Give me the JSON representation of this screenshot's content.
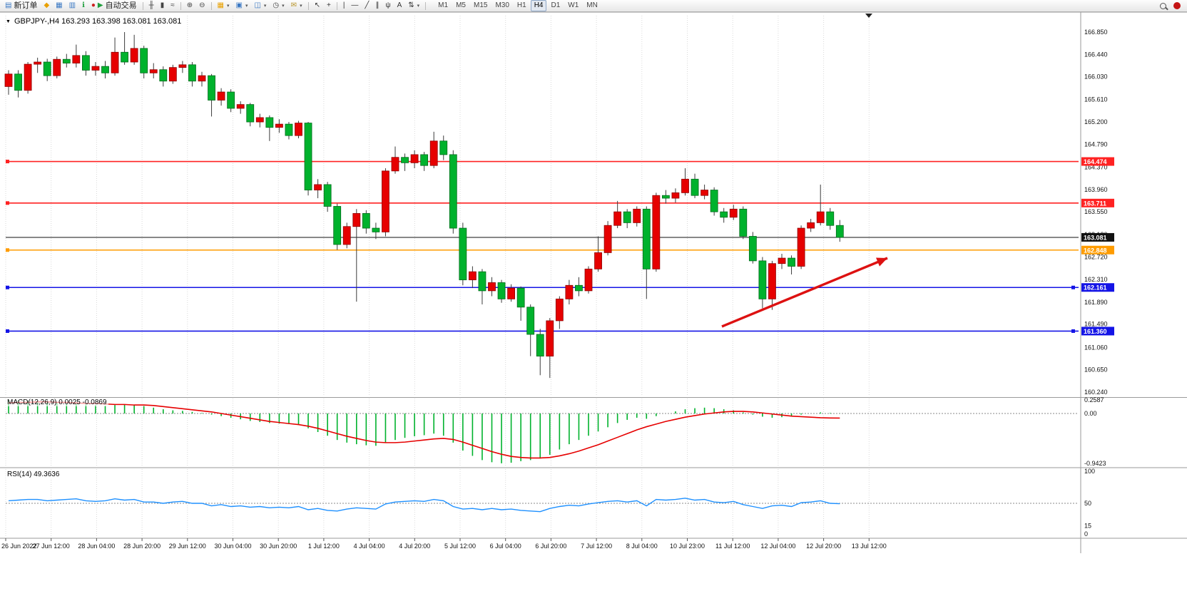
{
  "toolbar": {
    "items": [
      {
        "name": "new-order",
        "glyph": "▤",
        "color": "#3a78c3",
        "label": "新订单"
      },
      {
        "name": "profiles",
        "glyph": "◆",
        "color": "#e8a000"
      },
      {
        "name": "market-watch",
        "glyph": "▦",
        "color": "#3a78c3"
      },
      {
        "name": "data-window",
        "glyph": "▥",
        "color": "#3a78c3"
      },
      {
        "name": "navigator",
        "glyph": "ℹ",
        "color": "#1f9e3d"
      },
      {
        "name": "auto-trading",
        "glyph": "▶",
        "color": "#1f9e3d",
        "label": "自动交易",
        "pre_glyph": "●",
        "pre_color": "#cc2020"
      },
      {
        "sep": true
      },
      {
        "name": "bar-chart",
        "glyph": "╫",
        "color": "#444444"
      },
      {
        "name": "candlestick-chart",
        "glyph": "▮",
        "color": "#444444"
      },
      {
        "name": "line-chart",
        "glyph": "≈",
        "color": "#444444"
      },
      {
        "sep": true
      },
      {
        "name": "zoom-in",
        "glyph": "⊕",
        "color": "#444444"
      },
      {
        "name": "zoom-out",
        "glyph": "⊖",
        "color": "#444444"
      },
      {
        "sep": true
      },
      {
        "name": "indicators",
        "glyph": "▦",
        "color": "#e8a000",
        "caret": true
      },
      {
        "name": "periods",
        "glyph": "▣",
        "color": "#3a78c3",
        "caret": true
      },
      {
        "name": "templates",
        "glyph": "◫",
        "color": "#3a78c3",
        "caret": true
      },
      {
        "name": "alerts-clock",
        "glyph": "◷",
        "color": "#444444",
        "caret": true
      },
      {
        "name": "mailbox",
        "glyph": "✉",
        "color": "#b8952a",
        "caret": true
      },
      {
        "sep": true
      },
      {
        "name": "cursor",
        "glyph": "↖",
        "color": "#333333"
      },
      {
        "name": "crosshair",
        "glyph": "+",
        "color": "#333333"
      },
      {
        "sep": true
      },
      {
        "name": "vertical-line",
        "glyph": "|",
        "color": "#333333"
      },
      {
        "name": "horizontal-line",
        "glyph": "—",
        "color": "#333333"
      },
      {
        "name": "trendline",
        "glyph": "╱",
        "color": "#333333"
      },
      {
        "name": "equidistant-channel",
        "glyph": "∥",
        "color": "#333333"
      },
      {
        "name": "fibonacci",
        "glyph": "ψ",
        "color": "#333333"
      },
      {
        "name": "text-label",
        "glyph": "A",
        "color": "#333333"
      },
      {
        "name": "arrows-tool",
        "glyph": "⇅",
        "color": "#333333",
        "caret": true
      },
      {
        "sep": true
      }
    ],
    "timeframes": [
      "M1",
      "M5",
      "M15",
      "M30",
      "H1",
      "H4",
      "D1",
      "W1",
      "MN"
    ],
    "active_timeframe": "H4"
  },
  "chart": {
    "title": "GBPJPY-,H4 163.293 163.398 163.081 163.081",
    "symbol": "GBPJPY-",
    "period": "H4",
    "price_axis_labels": [
      "166.850",
      "166.440",
      "166.030",
      "165.610",
      "165.200",
      "164.790",
      "164.370",
      "163.960",
      "163.550",
      "163.130",
      "162.720",
      "162.310",
      "161.890",
      "161.490",
      "161.060",
      "160.650",
      "160.240"
    ],
    "hlines": [
      {
        "label": "164.474",
        "value": 164.474,
        "color": "#ff2222",
        "kind": "resistance-line"
      },
      {
        "label": "163.711",
        "value": 163.711,
        "color": "#ff2222",
        "kind": "resistance-line"
      },
      {
        "label": "163.081",
        "value": 163.081,
        "color": "#111111",
        "kind": "current-price-line"
      },
      {
        "label": "162.848",
        "value": 162.848,
        "color": "#ff9c00",
        "kind": "pivot-line"
      },
      {
        "label": "162.161",
        "value": 162.161,
        "color": "#1414e6",
        "kind": "support-line"
      },
      {
        "label": "161.360",
        "value": 161.36,
        "color": "#1414e6",
        "kind": "support-line"
      }
    ],
    "date_axis_labels": [
      "26 Jun 2022",
      "27 Jun 12:00",
      "28 Jun 04:00",
      "28 Jun 20:00",
      "29 Jun 12:00",
      "30 Jun 04:00",
      "30 Jun 20:00",
      "1 Jul 12:00",
      "4 Jul 04:00",
      "4 Jul 20:00",
      "5 Jul 12:00",
      "6 Jul 04:00",
      "6 Jul 20:00",
      "7 Jul 12:00",
      "8 Jul 04:00",
      "10 Jul 23:00",
      "11 Jul 12:00",
      "12 Jul 04:00",
      "12 Jul 20:00",
      "13 Jul 12:00"
    ]
  },
  "indicators": {
    "macd": {
      "label": "MACD(12,26,9) 0.0025 -0.0869",
      "axis_labels": [
        "0.2587",
        "0.00",
        "-0.9423"
      ],
      "axis_values": [
        0.2587,
        0,
        -0.9423
      ]
    },
    "rsi": {
      "label": "RSI(14) 49.3636",
      "axis_labels": [
        "100",
        "50",
        "15",
        "0"
      ],
      "axis_values": [
        100,
        50,
        15,
        0
      ]
    }
  },
  "icons": {
    "dropdown_caret": "▾",
    "chart_menu": "▼"
  },
  "colors": {
    "up": "#e60000",
    "up_border": "#8f0000",
    "down": "#00b22d",
    "down_border": "#006b1b",
    "wick": "#3c3c3c",
    "macd_hist": "#00b22d",
    "macd_signal": "#e60000",
    "rsi_line": "#1E90FF",
    "grid": "#d9d9d9",
    "arrow": "#dd1111",
    "axis_text": "#111111"
  },
  "chart_data": {
    "type": "candlestick",
    "symbol": "GBPJPY-",
    "timeframe": "H4",
    "ohlc_current": {
      "open": 163.293,
      "high": 163.398,
      "low": 163.081,
      "close": 163.081
    },
    "price_range": [
      160.24,
      166.85
    ],
    "candles": [
      [
        165.85,
        166.15,
        165.7,
        166.08
      ],
      [
        166.08,
        166.15,
        165.65,
        165.78
      ],
      [
        165.78,
        166.3,
        165.72,
        166.26
      ],
      [
        166.26,
        166.38,
        166.1,
        166.3
      ],
      [
        166.3,
        166.36,
        165.95,
        166.05
      ],
      [
        166.05,
        166.4,
        166.0,
        166.35
      ],
      [
        166.35,
        166.45,
        166.2,
        166.28
      ],
      [
        166.28,
        166.62,
        166.2,
        166.42
      ],
      [
        166.42,
        166.5,
        166.05,
        166.15
      ],
      [
        166.15,
        166.3,
        166.05,
        166.22
      ],
      [
        166.22,
        166.32,
        166.0,
        166.1
      ],
      [
        166.1,
        166.75,
        166.05,
        166.48
      ],
      [
        166.48,
        166.85,
        166.25,
        166.3
      ],
      [
        166.3,
        166.8,
        166.25,
        166.55
      ],
      [
        166.55,
        166.6,
        166.0,
        166.1
      ],
      [
        166.1,
        166.28,
        166.0,
        166.16
      ],
      [
        166.16,
        166.22,
        165.85,
        165.95
      ],
      [
        165.95,
        166.25,
        165.9,
        166.2
      ],
      [
        166.2,
        166.32,
        166.1,
        166.25
      ],
      [
        166.25,
        166.3,
        165.85,
        165.95
      ],
      [
        165.95,
        166.12,
        165.85,
        166.05
      ],
      [
        166.05,
        166.08,
        165.3,
        165.6
      ],
      [
        165.6,
        165.82,
        165.5,
        165.75
      ],
      [
        165.75,
        165.8,
        165.38,
        165.45
      ],
      [
        165.45,
        165.58,
        165.35,
        165.52
      ],
      [
        165.52,
        165.55,
        165.12,
        165.2
      ],
      [
        165.2,
        165.35,
        165.1,
        165.28
      ],
      [
        165.28,
        165.32,
        164.85,
        165.1
      ],
      [
        165.1,
        165.25,
        165.0,
        165.16
      ],
      [
        165.16,
        165.2,
        164.88,
        164.95
      ],
      [
        164.95,
        165.22,
        164.9,
        165.18
      ],
      [
        165.18,
        165.2,
        163.85,
        163.95
      ],
      [
        163.95,
        164.15,
        163.8,
        164.05
      ],
      [
        164.05,
        164.1,
        163.55,
        163.65
      ],
      [
        163.65,
        163.7,
        162.85,
        162.95
      ],
      [
        162.95,
        163.35,
        162.88,
        163.28
      ],
      [
        163.28,
        163.6,
        161.9,
        163.52
      ],
      [
        163.52,
        163.58,
        163.15,
        163.25
      ],
      [
        163.25,
        163.35,
        163.05,
        163.18
      ],
      [
        163.18,
        164.35,
        163.1,
        164.3
      ],
      [
        164.3,
        164.75,
        164.25,
        164.55
      ],
      [
        164.55,
        164.62,
        164.3,
        164.45
      ],
      [
        164.45,
        164.68,
        164.35,
        164.6
      ],
      [
        164.6,
        164.65,
        164.3,
        164.4
      ],
      [
        164.4,
        165.02,
        164.35,
        164.85
      ],
      [
        164.85,
        164.95,
        164.5,
        164.6
      ],
      [
        164.6,
        164.68,
        163.15,
        163.25
      ],
      [
        163.25,
        163.35,
        162.2,
        162.3
      ],
      [
        162.3,
        162.55,
        162.15,
        162.45
      ],
      [
        162.45,
        162.5,
        161.85,
        162.1
      ],
      [
        162.1,
        162.35,
        162.0,
        162.25
      ],
      [
        162.25,
        162.3,
        161.88,
        161.95
      ],
      [
        161.95,
        162.22,
        161.9,
        162.15
      ],
      [
        162.15,
        162.18,
        161.55,
        161.8
      ],
      [
        161.8,
        161.85,
        160.9,
        161.3
      ],
      [
        161.3,
        161.4,
        160.55,
        160.9
      ],
      [
        160.9,
        161.6,
        160.5,
        161.55
      ],
      [
        161.55,
        162.0,
        161.4,
        161.95
      ],
      [
        161.95,
        162.3,
        161.85,
        162.2
      ],
      [
        162.2,
        162.35,
        162.0,
        162.1
      ],
      [
        162.1,
        162.55,
        162.05,
        162.5
      ],
      [
        162.5,
        163.1,
        162.45,
        162.8
      ],
      [
        162.8,
        163.38,
        162.75,
        163.3
      ],
      [
        163.3,
        163.75,
        163.25,
        163.55
      ],
      [
        163.55,
        163.6,
        163.25,
        163.35
      ],
      [
        163.35,
        163.65,
        163.28,
        163.6
      ],
      [
        163.6,
        163.65,
        161.95,
        162.5
      ],
      [
        162.5,
        163.9,
        162.45,
        163.85
      ],
      [
        163.85,
        163.95,
        163.7,
        163.8
      ],
      [
        163.8,
        163.98,
        163.72,
        163.9
      ],
      [
        163.9,
        164.35,
        163.85,
        164.15
      ],
      [
        164.15,
        164.25,
        163.8,
        163.85
      ],
      [
        163.85,
        164.05,
        163.78,
        163.95
      ],
      [
        163.95,
        164.0,
        163.48,
        163.55
      ],
      [
        163.55,
        163.62,
        163.35,
        163.45
      ],
      [
        163.45,
        163.68,
        163.4,
        163.6
      ],
      [
        163.6,
        163.65,
        163.05,
        163.1
      ],
      [
        163.1,
        163.18,
        162.6,
        162.65
      ],
      [
        162.65,
        162.72,
        161.78,
        161.95
      ],
      [
        161.95,
        162.65,
        161.75,
        162.6
      ],
      [
        162.6,
        162.78,
        162.5,
        162.7
      ],
      [
        162.7,
        162.75,
        162.4,
        162.55
      ],
      [
        162.55,
        163.3,
        162.5,
        163.25
      ],
      [
        163.25,
        163.42,
        163.18,
        163.35
      ],
      [
        163.35,
        164.05,
        163.3,
        163.55
      ],
      [
        163.55,
        163.62,
        163.22,
        163.3
      ],
      [
        163.3,
        163.4,
        163.0,
        163.081
      ]
    ],
    "macd": {
      "histogram": [
        0.26,
        0.25,
        0.24,
        0.22,
        0.21,
        0.2,
        0.19,
        0.18,
        0.17,
        0.16,
        0.15,
        0.16,
        0.17,
        0.16,
        0.14,
        0.11,
        0.08,
        0.06,
        0.05,
        0.03,
        0.01,
        -0.02,
        -0.05,
        -0.08,
        -0.11,
        -0.14,
        -0.16,
        -0.18,
        -0.19,
        -0.2,
        -0.21,
        -0.28,
        -0.35,
        -0.42,
        -0.5,
        -0.55,
        -0.58,
        -0.6,
        -0.61,
        -0.55,
        -0.5,
        -0.46,
        -0.43,
        -0.41,
        -0.38,
        -0.42,
        -0.55,
        -0.7,
        -0.8,
        -0.88,
        -0.92,
        -0.94,
        -0.93,
        -0.9,
        -0.88,
        -0.85,
        -0.78,
        -0.68,
        -0.58,
        -0.5,
        -0.42,
        -0.34,
        -0.26,
        -0.18,
        -0.12,
        -0.08,
        -0.1,
        -0.05,
        0.0,
        0.04,
        0.08,
        0.1,
        0.11,
        0.1,
        0.08,
        0.06,
        0.02,
        -0.02,
        -0.06,
        -0.08,
        -0.07,
        -0.05,
        -0.02,
        0.0,
        0.02,
        0.01,
        0.0025
      ],
      "signal": [
        0.2,
        0.21,
        0.21,
        0.22,
        0.22,
        0.21,
        0.21,
        0.2,
        0.19,
        0.19,
        0.18,
        0.17,
        0.17,
        0.16,
        0.16,
        0.15,
        0.13,
        0.11,
        0.09,
        0.07,
        0.05,
        0.03,
        0.0,
        -0.03,
        -0.06,
        -0.09,
        -0.12,
        -0.15,
        -0.17,
        -0.19,
        -0.21,
        -0.24,
        -0.28,
        -0.33,
        -0.38,
        -0.43,
        -0.47,
        -0.51,
        -0.54,
        -0.55,
        -0.55,
        -0.54,
        -0.52,
        -0.5,
        -0.48,
        -0.47,
        -0.49,
        -0.54,
        -0.6,
        -0.66,
        -0.72,
        -0.77,
        -0.81,
        -0.83,
        -0.84,
        -0.84,
        -0.83,
        -0.8,
        -0.76,
        -0.71,
        -0.65,
        -0.59,
        -0.52,
        -0.45,
        -0.38,
        -0.31,
        -0.25,
        -0.2,
        -0.15,
        -0.11,
        -0.07,
        -0.04,
        -0.01,
        0.01,
        0.03,
        0.04,
        0.04,
        0.03,
        0.01,
        -0.01,
        -0.03,
        -0.05,
        -0.06,
        -0.07,
        -0.08,
        -0.085,
        -0.0869
      ]
    },
    "rsi": [
      54,
      55,
      56,
      56,
      54,
      55,
      56,
      57,
      54,
      53,
      54,
      57,
      55,
      56,
      52,
      52,
      50,
      52,
      53,
      50,
      50,
      46,
      48,
      45,
      46,
      44,
      45,
      43,
      44,
      43,
      45,
      40,
      42,
      39,
      38,
      41,
      43,
      42,
      41,
      49,
      52,
      53,
      54,
      53,
      56,
      54,
      45,
      41,
      42,
      40,
      42,
      40,
      41,
      39,
      38,
      37,
      42,
      45,
      47,
      46,
      49,
      51,
      53,
      54,
      52,
      54,
      46,
      56,
      55,
      56,
      58,
      55,
      56,
      52,
      51,
      53,
      48,
      45,
      42,
      46,
      47,
      45,
      51,
      52,
      54,
      50,
      49.36
    ],
    "annotations": [
      {
        "type": "trend-arrow",
        "from": [
          1012,
          458
        ],
        "to": [
          1244,
          362
        ]
      }
    ]
  }
}
